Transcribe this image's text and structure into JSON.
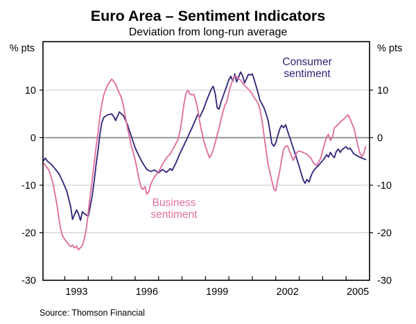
{
  "header": {
    "title": "Euro Area – Sentiment Indicators",
    "subtitle": "Deviation from long-run average"
  },
  "footer": {
    "source": "Source: Thomson Financial"
  },
  "axes": {
    "left_unit": "% pts",
    "right_unit": "% pts",
    "y_ticks": [
      10,
      0,
      -10,
      -20,
      -30
    ],
    "x_tick_years": [
      1993,
      1994,
      1995,
      1996,
      1997,
      1998,
      1999,
      2000,
      2001,
      2002,
      2003,
      2004,
      2005
    ],
    "x_labels": [
      1993,
      1996,
      1999,
      2002,
      2005
    ]
  },
  "colors": {
    "consumer_line": "#352a7d",
    "business_line": "#e0709f",
    "consumer_label": "#2e2478",
    "business_label": "#e0709f",
    "gridline": "#c9c9c9",
    "zero_line": "#7f7f7f",
    "frame": "#000000",
    "background": "#ffffff"
  },
  "chart_data": {
    "type": "line",
    "title": "Euro Area – Sentiment Indicators",
    "subtitle": "Deviation from long-run average",
    "ylabel": "% pts",
    "x_range": [
      1992.07,
      2006.0
    ],
    "y_range": [
      -30,
      20.2
    ],
    "gridlines": [
      10,
      -10,
      -20
    ],
    "zero_line": 0,
    "grid": true,
    "legend_position": "annotated-inline",
    "series": [
      {
        "name": "Consumer sentiment",
        "label_lines": [
          "Consumer",
          "sentiment"
        ],
        "color": "#352a7d",
        "points": [
          [
            1992.08,
            -4.9
          ],
          [
            1992.17,
            -4.3
          ],
          [
            1992.25,
            -4.9
          ],
          [
            1992.42,
            -5.6
          ],
          [
            1992.58,
            -6.5
          ],
          [
            1992.75,
            -7.6
          ],
          [
            1992.92,
            -9.3
          ],
          [
            1993.08,
            -11.2
          ],
          [
            1993.25,
            -14.5
          ],
          [
            1993.33,
            -17.2
          ],
          [
            1993.5,
            -15.2
          ],
          [
            1993.58,
            -16.0
          ],
          [
            1993.67,
            -17.4
          ],
          [
            1993.75,
            -15.6
          ],
          [
            1993.92,
            -16.3
          ],
          [
            1994.0,
            -16.5
          ],
          [
            1994.08,
            -14.6
          ],
          [
            1994.17,
            -12.2
          ],
          [
            1994.25,
            -9.3
          ],
          [
            1994.33,
            -5.9
          ],
          [
            1994.42,
            -2.5
          ],
          [
            1994.5,
            0.8
          ],
          [
            1994.58,
            3.2
          ],
          [
            1994.67,
            4.3
          ],
          [
            1994.83,
            4.8
          ],
          [
            1995.0,
            5.0
          ],
          [
            1995.08,
            4.5
          ],
          [
            1995.17,
            3.6
          ],
          [
            1995.33,
            5.4
          ],
          [
            1995.42,
            5.0
          ],
          [
            1995.5,
            4.6
          ],
          [
            1995.67,
            2.8
          ],
          [
            1995.83,
            0.4
          ],
          [
            1996.0,
            -2.1
          ],
          [
            1996.17,
            -3.9
          ],
          [
            1996.33,
            -5.4
          ],
          [
            1996.5,
            -6.7
          ],
          [
            1996.67,
            -7.1
          ],
          [
            1996.83,
            -6.8
          ],
          [
            1997.0,
            -7.4
          ],
          [
            1997.17,
            -6.7
          ],
          [
            1997.33,
            -7.3
          ],
          [
            1997.5,
            -6.5
          ],
          [
            1997.58,
            -6.9
          ],
          [
            1997.75,
            -5.2
          ],
          [
            1997.92,
            -3.2
          ],
          [
            1998.08,
            -1.6
          ],
          [
            1998.25,
            0.2
          ],
          [
            1998.42,
            2.0
          ],
          [
            1998.58,
            3.8
          ],
          [
            1998.67,
            4.9
          ],
          [
            1998.75,
            4.3
          ],
          [
            1998.92,
            6.0
          ],
          [
            1999.08,
            8.2
          ],
          [
            1999.25,
            10.2
          ],
          [
            1999.33,
            10.8
          ],
          [
            1999.42,
            9.2
          ],
          [
            1999.5,
            6.3
          ],
          [
            1999.58,
            6.0
          ],
          [
            1999.67,
            7.6
          ],
          [
            1999.83,
            9.8
          ],
          [
            1999.92,
            11.0
          ],
          [
            2000.0,
            12.2
          ],
          [
            2000.08,
            12.9
          ],
          [
            2000.17,
            11.9
          ],
          [
            2000.25,
            13.4
          ],
          [
            2000.33,
            11.7
          ],
          [
            2000.5,
            13.8
          ],
          [
            2000.58,
            13.1
          ],
          [
            2000.67,
            11.5
          ],
          [
            2000.83,
            13.3
          ],
          [
            2000.92,
            13.2
          ],
          [
            2001.0,
            13.4
          ],
          [
            2001.08,
            12.2
          ],
          [
            2001.17,
            10.7
          ],
          [
            2001.25,
            9.3
          ],
          [
            2001.33,
            7.8
          ],
          [
            2001.5,
            6.3
          ],
          [
            2001.58,
            5.1
          ],
          [
            2001.67,
            3.7
          ],
          [
            2001.75,
            1.4
          ],
          [
            2001.83,
            -1.2
          ],
          [
            2001.92,
            -1.8
          ],
          [
            2002.0,
            -1.1
          ],
          [
            2002.08,
            0.4
          ],
          [
            2002.17,
            1.8
          ],
          [
            2002.25,
            2.6
          ],
          [
            2002.33,
            2.1
          ],
          [
            2002.42,
            2.7
          ],
          [
            2002.5,
            1.4
          ],
          [
            2002.58,
            0.3
          ],
          [
            2002.67,
            -1.1
          ],
          [
            2002.83,
            -3.4
          ],
          [
            2003.0,
            -6.1
          ],
          [
            2003.17,
            -8.9
          ],
          [
            2003.25,
            -9.6
          ],
          [
            2003.33,
            -8.8
          ],
          [
            2003.42,
            -9.3
          ],
          [
            2003.5,
            -8.1
          ],
          [
            2003.58,
            -7.2
          ],
          [
            2003.67,
            -6.6
          ],
          [
            2003.83,
            -5.8
          ],
          [
            2004.0,
            -4.8
          ],
          [
            2004.08,
            -4.3
          ],
          [
            2004.17,
            -3.6
          ],
          [
            2004.25,
            -4.1
          ],
          [
            2004.33,
            -3.1
          ],
          [
            2004.42,
            -3.8
          ],
          [
            2004.5,
            -4.2
          ],
          [
            2004.58,
            -2.9
          ],
          [
            2004.67,
            -2.4
          ],
          [
            2004.75,
            -3.1
          ],
          [
            2004.83,
            -2.5
          ],
          [
            2005.0,
            -1.9
          ],
          [
            2005.08,
            -2.4
          ],
          [
            2005.17,
            -2.2
          ],
          [
            2005.25,
            -2.8
          ],
          [
            2005.33,
            -3.4
          ],
          [
            2005.5,
            -3.9
          ],
          [
            2005.67,
            -4.3
          ],
          [
            2005.83,
            -4.6
          ]
        ]
      },
      {
        "name": "Business sentiment",
        "label_lines": [
          "Business",
          "sentiment"
        ],
        "color": "#e0709f",
        "points": [
          [
            1992.08,
            -5.3
          ],
          [
            1992.17,
            -5.8
          ],
          [
            1992.33,
            -6.9
          ],
          [
            1992.5,
            -9.6
          ],
          [
            1992.58,
            -11.8
          ],
          [
            1992.67,
            -14.2
          ],
          [
            1992.75,
            -17.0
          ],
          [
            1992.83,
            -19.4
          ],
          [
            1992.92,
            -20.8
          ],
          [
            1993.0,
            -21.4
          ],
          [
            1993.17,
            -22.5
          ],
          [
            1993.25,
            -22.9
          ],
          [
            1993.33,
            -22.6
          ],
          [
            1993.42,
            -23.2
          ],
          [
            1993.5,
            -22.8
          ],
          [
            1993.58,
            -23.6
          ],
          [
            1993.67,
            -23.1
          ],
          [
            1993.75,
            -22.7
          ],
          [
            1993.83,
            -21.4
          ],
          [
            1993.92,
            -19.1
          ],
          [
            1994.0,
            -15.7
          ],
          [
            1994.08,
            -12.3
          ],
          [
            1994.17,
            -8.9
          ],
          [
            1994.25,
            -5.5
          ],
          [
            1994.33,
            -2.2
          ],
          [
            1994.42,
            1.2
          ],
          [
            1994.5,
            4.6
          ],
          [
            1994.58,
            7.1
          ],
          [
            1994.67,
            9.1
          ],
          [
            1994.83,
            11.1
          ],
          [
            1995.0,
            12.3
          ],
          [
            1995.08,
            11.9
          ],
          [
            1995.17,
            11.2
          ],
          [
            1995.33,
            9.3
          ],
          [
            1995.42,
            8.4
          ],
          [
            1995.5,
            6.7
          ],
          [
            1995.58,
            4.5
          ],
          [
            1995.67,
            2.1
          ],
          [
            1995.75,
            0.4
          ],
          [
            1995.83,
            -1.6
          ],
          [
            1995.92,
            -3.1
          ],
          [
            1996.0,
            -4.7
          ],
          [
            1996.08,
            -6.6
          ],
          [
            1996.17,
            -8.8
          ],
          [
            1996.25,
            -10.4
          ],
          [
            1996.33,
            -10.9
          ],
          [
            1996.42,
            -10.3
          ],
          [
            1996.5,
            -11.9
          ],
          [
            1996.58,
            -11.4
          ],
          [
            1996.67,
            -9.7
          ],
          [
            1996.83,
            -8.2
          ],
          [
            1997.0,
            -7.2
          ],
          [
            1997.17,
            -5.6
          ],
          [
            1997.33,
            -4.3
          ],
          [
            1997.5,
            -3.4
          ],
          [
            1997.67,
            -1.9
          ],
          [
            1997.83,
            -0.4
          ],
          [
            1997.92,
            1.5
          ],
          [
            1998.0,
            4.0
          ],
          [
            1998.08,
            7.0
          ],
          [
            1998.17,
            9.3
          ],
          [
            1998.25,
            10.0
          ],
          [
            1998.33,
            9.2
          ],
          [
            1998.42,
            9.0
          ],
          [
            1998.5,
            9.1
          ],
          [
            1998.58,
            8.0
          ],
          [
            1998.67,
            6.0
          ],
          [
            1998.75,
            3.5
          ],
          [
            1998.83,
            1.5
          ],
          [
            1998.92,
            -0.5
          ],
          [
            1999.0,
            -1.8
          ],
          [
            1999.08,
            -3.0
          ],
          [
            1999.17,
            -4.2
          ],
          [
            1999.25,
            -3.6
          ],
          [
            1999.33,
            -2.6
          ],
          [
            1999.42,
            -1.0
          ],
          [
            1999.5,
            0.5
          ],
          [
            1999.58,
            2.0
          ],
          [
            1999.67,
            4.0
          ],
          [
            1999.75,
            5.5
          ],
          [
            1999.83,
            6.8
          ],
          [
            1999.92,
            7.7
          ],
          [
            2000.0,
            9.5
          ],
          [
            2000.08,
            11.0
          ],
          [
            2000.17,
            12.2
          ],
          [
            2000.25,
            13.0
          ],
          [
            2000.33,
            12.8
          ],
          [
            2000.42,
            12.4
          ],
          [
            2000.5,
            12.1
          ],
          [
            2000.58,
            11.5
          ],
          [
            2000.67,
            11.0
          ],
          [
            2000.75,
            10.6
          ],
          [
            2000.83,
            10.2
          ],
          [
            2000.92,
            9.7
          ],
          [
            2001.0,
            9.2
          ],
          [
            2001.08,
            8.4
          ],
          [
            2001.17,
            7.8
          ],
          [
            2001.25,
            7.2
          ],
          [
            2001.33,
            5.8
          ],
          [
            2001.42,
            3.4
          ],
          [
            2001.5,
            0.5
          ],
          [
            2001.58,
            -2.5
          ],
          [
            2001.67,
            -5.5
          ],
          [
            2001.75,
            -7.3
          ],
          [
            2001.83,
            -9.0
          ],
          [
            2001.92,
            -10.8
          ],
          [
            2002.0,
            -11.2
          ],
          [
            2002.08,
            -9.0
          ],
          [
            2002.17,
            -7.0
          ],
          [
            2002.25,
            -4.6
          ],
          [
            2002.33,
            -2.5
          ],
          [
            2002.42,
            -1.8
          ],
          [
            2002.5,
            -1.7
          ],
          [
            2002.58,
            -2.8
          ],
          [
            2002.67,
            -3.9
          ],
          [
            2002.75,
            -4.8
          ],
          [
            2002.83,
            -3.8
          ],
          [
            2002.92,
            -3.0
          ],
          [
            2003.0,
            -2.8
          ],
          [
            2003.17,
            -3.1
          ],
          [
            2003.33,
            -3.5
          ],
          [
            2003.5,
            -4.3
          ],
          [
            2003.58,
            -5.1
          ],
          [
            2003.67,
            -5.7
          ],
          [
            2003.75,
            -5.8
          ],
          [
            2003.83,
            -5.1
          ],
          [
            2003.92,
            -4.3
          ],
          [
            2004.0,
            -2.7
          ],
          [
            2004.08,
            -1.3
          ],
          [
            2004.17,
            0.2
          ],
          [
            2004.25,
            0.7
          ],
          [
            2004.33,
            -0.6
          ],
          [
            2004.42,
            0.2
          ],
          [
            2004.5,
            2.1
          ],
          [
            2004.58,
            2.4
          ],
          [
            2004.67,
            2.8
          ],
          [
            2004.75,
            3.3
          ],
          [
            2004.83,
            3.6
          ],
          [
            2004.92,
            4.0
          ],
          [
            2005.0,
            4.4
          ],
          [
            2005.08,
            4.8
          ],
          [
            2005.17,
            4.0
          ],
          [
            2005.25,
            3.0
          ],
          [
            2005.33,
            2.1
          ],
          [
            2005.42,
            0.2
          ],
          [
            2005.5,
            -1.7
          ],
          [
            2005.58,
            -3.1
          ],
          [
            2005.67,
            -4.0
          ],
          [
            2005.75,
            -3.4
          ],
          [
            2005.83,
            -1.9
          ]
        ]
      }
    ]
  }
}
